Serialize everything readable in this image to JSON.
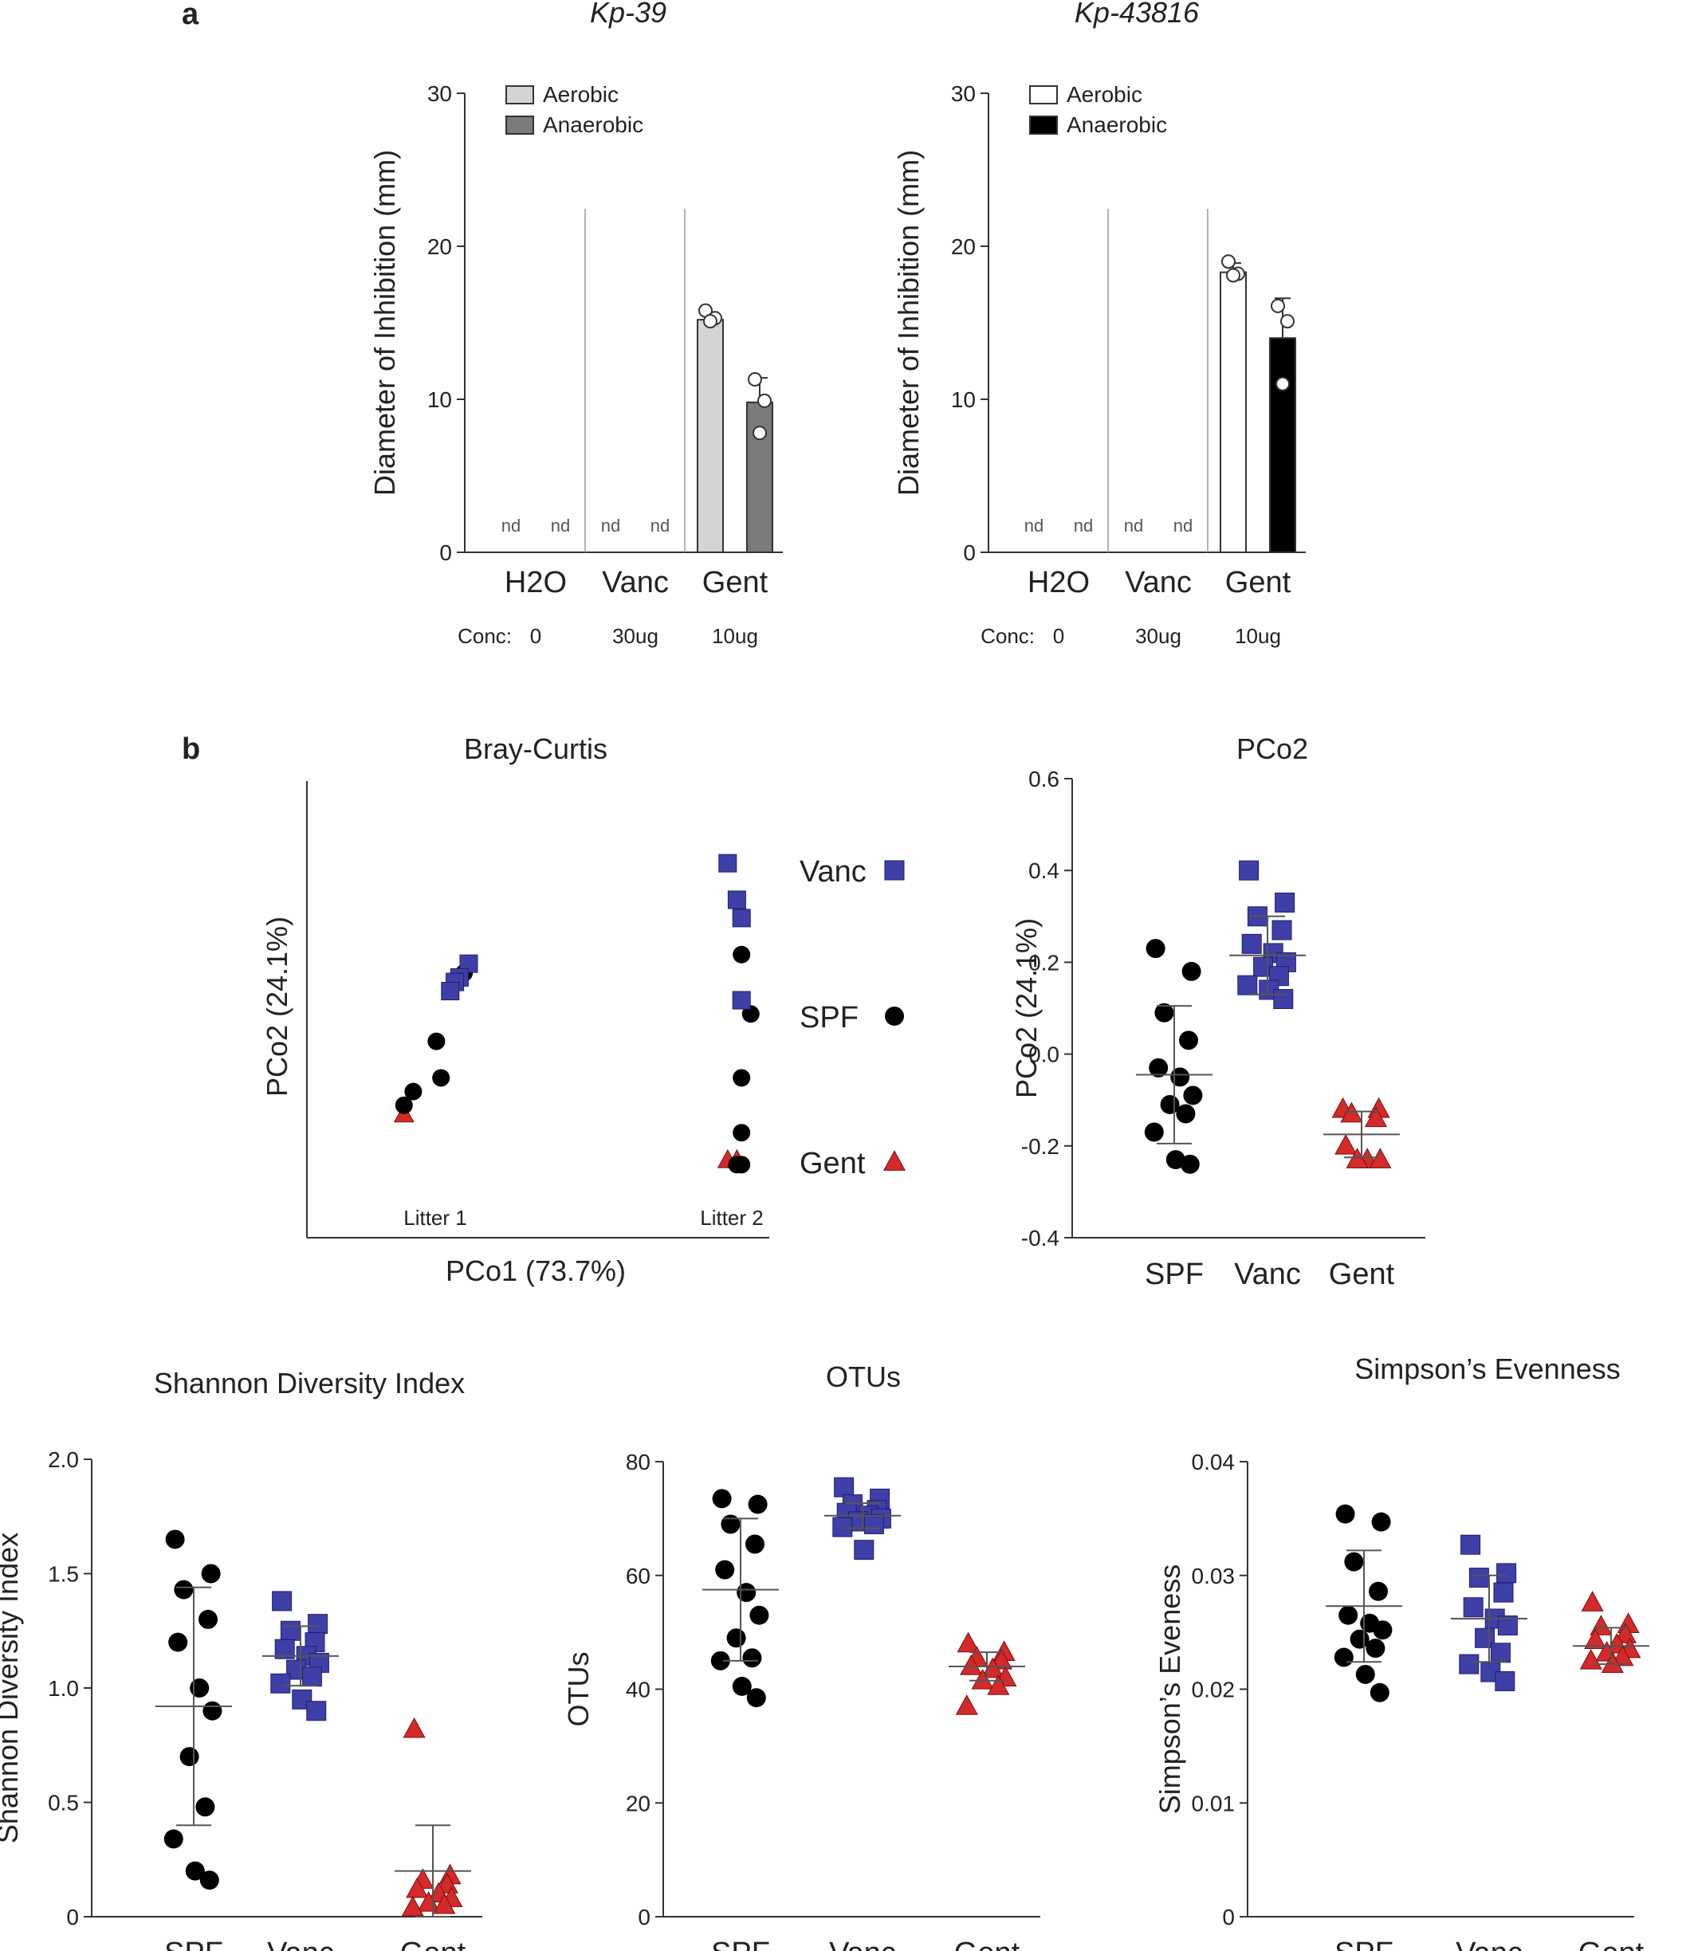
{
  "panel_labels": {
    "a": "a",
    "b": "b"
  },
  "colors": {
    "spf": "#000000",
    "vanc": "#3f3fa8",
    "gent": "#d42a2a",
    "kp39_aerobic": "#d4d4d4",
    "kp39_anaerobic": "#7a7a7a",
    "kp43816_aerobic": "#ffffff",
    "kp43816_anaerobic": "#000000"
  },
  "chart_data": [
    {
      "id": "kp39",
      "type": "bar",
      "title": "Kp-39",
      "ylabel": "Diameter of Inhibition (mm)",
      "ylim": [
        0,
        30
      ],
      "yticks": [
        "0",
        "10",
        "20",
        "30"
      ],
      "categories": [
        "H2O",
        "Vanc",
        "Gent"
      ],
      "conc_label": "Conc:",
      "conc": [
        "0",
        "30ug",
        "10ug"
      ],
      "nd_label": "nd",
      "series": [
        {
          "name": "Aerobic",
          "values": [
            null,
            null,
            15.2
          ],
          "error": [
            0,
            0,
            0.5
          ],
          "points": [
            [],
            [],
            [
              15.8,
              15.3,
              15.1
            ]
          ]
        },
        {
          "name": "Anaerobic",
          "values": [
            null,
            null,
            9.8
          ],
          "error": [
            0,
            0,
            1.6
          ],
          "points": [
            [],
            [],
            [
              11.3,
              9.9,
              7.8
            ]
          ]
        }
      ]
    },
    {
      "id": "kp43816",
      "type": "bar",
      "title": "Kp-43816",
      "ylabel": "Diameter of Inhibition (mm)",
      "ylim": [
        0,
        30
      ],
      "yticks": [
        "0",
        "10",
        "20",
        "30"
      ],
      "categories": [
        "H2O",
        "Vanc",
        "Gent"
      ],
      "conc_label": "Conc:",
      "conc": [
        "0",
        "30ug",
        "10ug"
      ],
      "nd_label": "nd",
      "series": [
        {
          "name": "Aerobic",
          "values": [
            null,
            null,
            18.3
          ],
          "error": [
            0,
            0,
            0.6
          ],
          "points": [
            [],
            [],
            [
              19.0,
              18.2,
              18.1
            ]
          ]
        },
        {
          "name": "Anaerobic",
          "values": [
            null,
            null,
            14.0
          ],
          "error": [
            0,
            0,
            2.6
          ],
          "points": [
            [],
            [],
            [
              16.1,
              15.1,
              11.0
            ]
          ]
        }
      ]
    },
    {
      "id": "braycurtis",
      "type": "scatter",
      "title": "Bray-Curtis",
      "xlabel": "PCo1 (73.7%)",
      "ylabel": "PCo2 (24.1%)",
      "xlim": [
        0,
        10
      ],
      "ylim": [
        0,
        10
      ],
      "annotations": [
        "Litter 1",
        "Litter 2"
      ],
      "legend": [
        "Vanc",
        "SPF",
        "Gent"
      ],
      "series": [
        {
          "name": "Vanc",
          "points": [
            [
              3.5,
              6.0
            ],
            [
              3.3,
              5.7
            ],
            [
              3.2,
              5.6
            ],
            [
              3.1,
              5.4
            ],
            [
              9.1,
              8.2
            ],
            [
              9.3,
              7.4
            ],
            [
              9.4,
              7.0
            ],
            [
              9.4,
              5.2
            ]
          ]
        },
        {
          "name": "SPF",
          "points": [
            [
              3.4,
              5.8
            ],
            [
              2.8,
              4.3
            ],
            [
              2.9,
              3.5
            ],
            [
              2.3,
              3.2
            ],
            [
              2.1,
              2.9
            ],
            [
              9.4,
              6.2
            ],
            [
              9.6,
              4.9
            ],
            [
              9.4,
              3.5
            ],
            [
              9.4,
              2.3
            ],
            [
              9.4,
              1.6
            ],
            [
              9.3,
              1.6
            ]
          ]
        },
        {
          "name": "Gent",
          "points": [
            [
              2.1,
              2.7
            ],
            [
              9.1,
              1.7
            ],
            [
              9.3,
              1.7
            ]
          ]
        }
      ]
    },
    {
      "id": "pco2",
      "type": "scatter",
      "title": "PCo2",
      "ylabel": "PCo2 (24.1%)",
      "ylim": [
        -0.4,
        0.6
      ],
      "yticks": [
        "-0.4",
        "-0.2",
        "0.0",
        "0.2",
        "0.4",
        "0.6"
      ],
      "categories": [
        "SPF",
        "Vanc",
        "Gent"
      ],
      "series": [
        {
          "name": "SPF",
          "mean": -0.045,
          "sd": 0.15,
          "values": [
            0.23,
            0.18,
            0.09,
            0.03,
            -0.03,
            -0.05,
            -0.09,
            -0.11,
            -0.13,
            -0.17,
            -0.23,
            -0.24
          ]
        },
        {
          "name": "Vanc",
          "mean": 0.215,
          "sd": 0.085,
          "values": [
            0.4,
            0.33,
            0.3,
            0.27,
            0.24,
            0.22,
            0.2,
            0.19,
            0.17,
            0.15,
            0.14,
            0.12
          ]
        },
        {
          "name": "Gent",
          "mean": -0.175,
          "sd": 0.05,
          "values": [
            -0.12,
            -0.12,
            -0.13,
            -0.14,
            -0.2,
            -0.23,
            -0.23,
            -0.23
          ]
        }
      ]
    },
    {
      "id": "shannon",
      "type": "scatter",
      "title": "Shannon Diversity Index",
      "ylabel": "Shannon Diversity Index",
      "ylim": [
        0,
        2.0
      ],
      "yticks": [
        "0",
        "0.5",
        "1.0",
        "1.5",
        "2.0"
      ],
      "categories": [
        "SPF",
        "Vanc",
        "Gent"
      ],
      "series": [
        {
          "name": "SPF",
          "mean": 0.92,
          "sd": 0.52,
          "values": [
            1.65,
            1.5,
            1.43,
            1.3,
            1.2,
            1.0,
            0.9,
            0.7,
            0.48,
            0.34,
            0.2,
            0.16
          ]
        },
        {
          "name": "Vanc",
          "mean": 1.14,
          "sd": 0.13,
          "values": [
            1.38,
            1.28,
            1.25,
            1.2,
            1.17,
            1.14,
            1.11,
            1.08,
            1.05,
            1.02,
            0.95,
            0.9
          ]
        },
        {
          "name": "Gent",
          "mean": 0.2,
          "sd": 0.2,
          "values": [
            0.82,
            0.18,
            0.16,
            0.14,
            0.12,
            0.1,
            0.08,
            0.06,
            0.05,
            0.04
          ]
        }
      ]
    },
    {
      "id": "otus",
      "type": "scatter",
      "title": "OTUs",
      "ylabel": "OTUs",
      "ylim": [
        0,
        80
      ],
      "yticks": [
        "0",
        "20",
        "40",
        "60",
        "80"
      ],
      "categories": [
        "SPF",
        "Vanc",
        "Gent"
      ],
      "series": [
        {
          "name": "SPF",
          "mean": 57.5,
          "sd": 12.5,
          "values": [
            73.5,
            72.5,
            69.0,
            65.5,
            61.0,
            57.0,
            53.0,
            49.0,
            45.5,
            45.0,
            40.5,
            38.5
          ]
        },
        {
          "name": "Vanc",
          "mean": 70.5,
          "sd": 2.2,
          "values": [
            75.5,
            73.5,
            72.5,
            71.5,
            71.0,
            70.5,
            70.0,
            69.5,
            69.0,
            68.5,
            64.5
          ]
        },
        {
          "name": "Gent",
          "mean": 44.0,
          "sd": 2.5,
          "values": [
            48.0,
            46.5,
            45.5,
            45.0,
            44.0,
            43.5,
            42.0,
            41.5,
            40.5,
            37.0
          ]
        }
      ]
    },
    {
      "id": "simpson",
      "type": "scatter",
      "title": "Simpson’s Evenness",
      "ylabel": "Simpson’s Eveness",
      "ylim": [
        0,
        0.04
      ],
      "yticks": [
        "0",
        "0.01",
        "0.02",
        "0.03",
        "0.04"
      ],
      "categories": [
        "SPF",
        "Vanc",
        "Gent"
      ],
      "series": [
        {
          "name": "SPF",
          "mean": 0.0273,
          "sd": 0.0049,
          "values": [
            0.0354,
            0.0347,
            0.0312,
            0.0286,
            0.0265,
            0.0258,
            0.0252,
            0.0244,
            0.0236,
            0.0228,
            0.0213,
            0.0197
          ]
        },
        {
          "name": "Vanc",
          "mean": 0.0262,
          "sd": 0.0038,
          "values": [
            0.0327,
            0.0302,
            0.0298,
            0.0285,
            0.0272,
            0.0262,
            0.0256,
            0.0245,
            0.0232,
            0.0222,
            0.0215,
            0.0207
          ]
        },
        {
          "name": "Gent",
          "mean": 0.0238,
          "sd": 0.0016,
          "values": [
            0.0276,
            0.0257,
            0.0255,
            0.0248,
            0.0243,
            0.0239,
            0.0235,
            0.0232,
            0.0228,
            0.0225,
            0.0222
          ]
        }
      ]
    }
  ]
}
